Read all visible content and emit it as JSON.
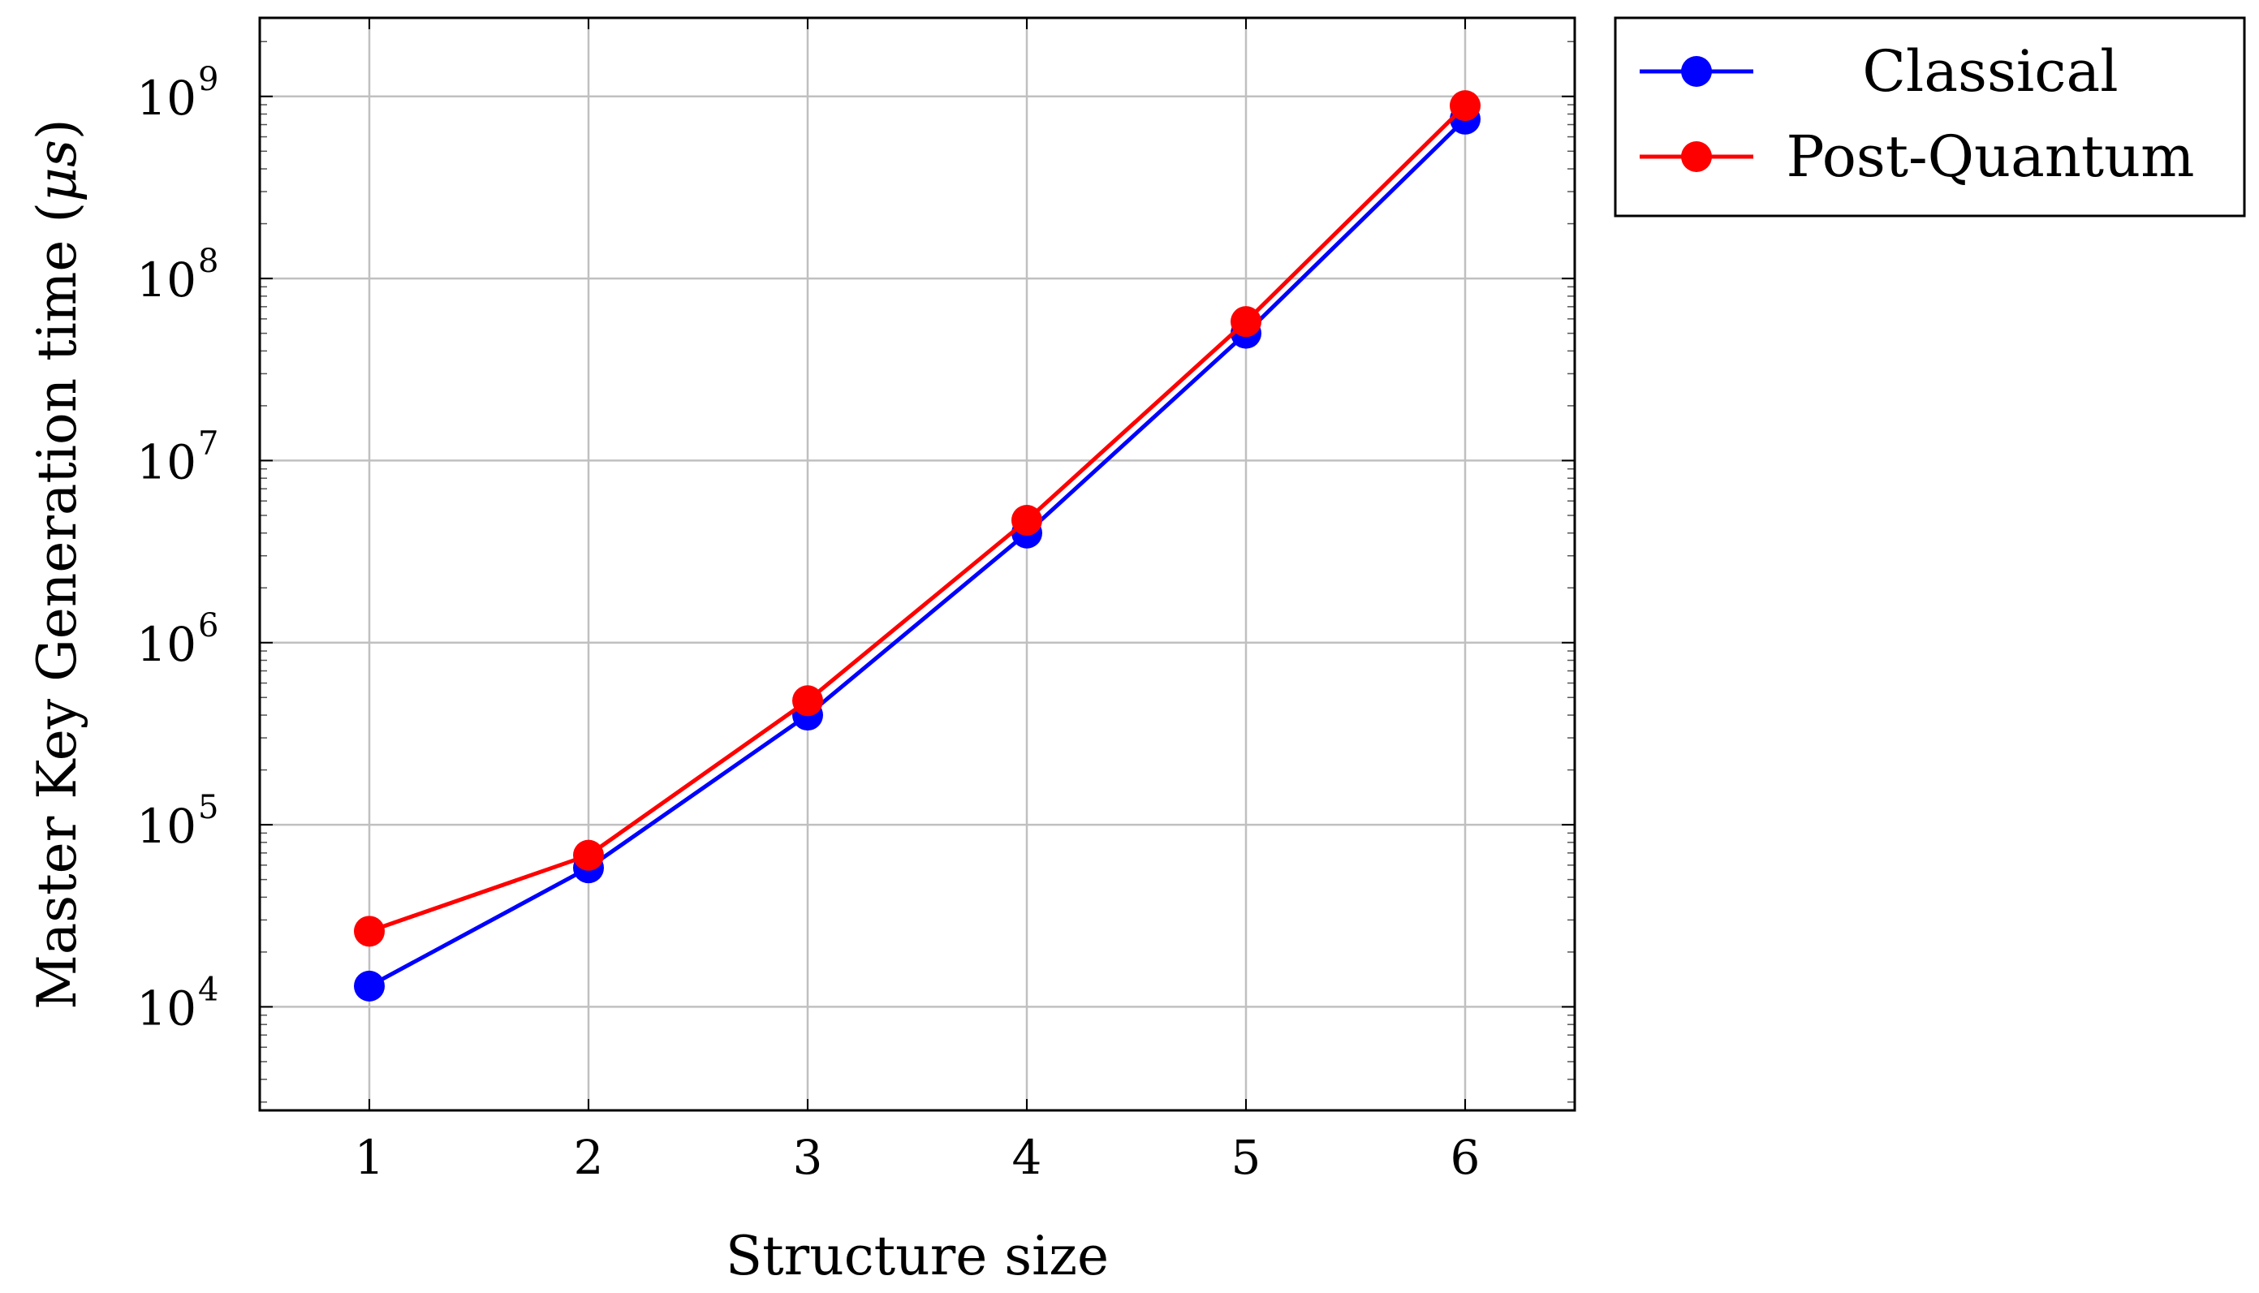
{
  "chart_data": {
    "type": "line",
    "title": "",
    "xlabel": "Structure size",
    "ylabel": "Master Key Generation time (μs)",
    "ylabel_parts": {
      "text": "Master Key Generation time (",
      "unit": "μs",
      "close": ")"
    },
    "x": [
      1,
      2,
      3,
      4,
      5,
      6
    ],
    "x_tick_labels": [
      "1",
      "2",
      "3",
      "4",
      "5",
      "6"
    ],
    "xlim": [
      0.5,
      6.5
    ],
    "y_scale": "log",
    "ylim": [
      2700,
      2700000000
    ],
    "y_ticks": [
      {
        "value": 10000,
        "base": "10",
        "exponent": "4"
      },
      {
        "value": 100000,
        "base": "10",
        "exponent": "5"
      },
      {
        "value": 1000000,
        "base": "10",
        "exponent": "6"
      },
      {
        "value": 10000000,
        "base": "10",
        "exponent": "7"
      },
      {
        "value": 100000000,
        "base": "10",
        "exponent": "8"
      },
      {
        "value": 1000000000,
        "base": "10",
        "exponent": "9"
      }
    ],
    "grid": true,
    "legend_position": "outside-right-top",
    "series": [
      {
        "name": "Classical",
        "color": "#0000ff",
        "values": [
          13000,
          58000,
          400000,
          4000000,
          50000000,
          750000000
        ]
      },
      {
        "name": "Post-Quantum",
        "color": "#ff0000",
        "values": [
          26000,
          68000,
          480000,
          4700000,
          58000000,
          890000000
        ]
      }
    ]
  }
}
